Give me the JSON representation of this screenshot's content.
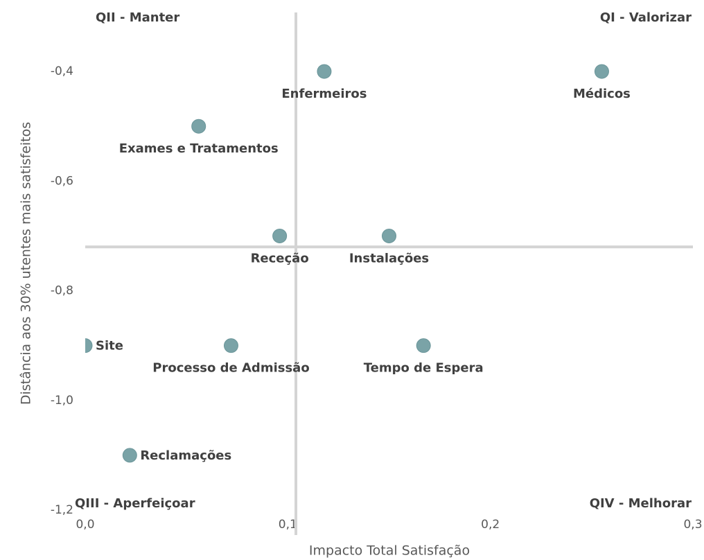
{
  "chart_data": {
    "type": "scatter",
    "x_label": "Impacto Total Satisfação",
    "y_label": "Distância aos 30% utentes mais satisfeitos",
    "xlim": [
      0,
      0.3
    ],
    "xticks": [
      {
        "value": 0,
        "label": "0,0"
      },
      {
        "value": 0.1,
        "label": "0,1"
      },
      {
        "value": 0.2,
        "label": "0,2"
      },
      {
        "value": 0.3,
        "label": "0,3"
      }
    ],
    "ylim": [
      -1.2,
      -0.3
    ],
    "yticks": [
      {
        "value": -1.2,
        "label": "-1,2"
      },
      {
        "value": -1.0,
        "label": "-1,0"
      },
      {
        "value": -0.8,
        "label": "-0,8"
      },
      {
        "value": -0.6,
        "label": "-0,6"
      },
      {
        "value": -0.4,
        "label": "-0,4"
      }
    ],
    "color": "#7aa3a7",
    "quadrant_lines": {
      "x": 0.104,
      "y": -0.72
    },
    "quadrants": [
      "QI - Valorizar",
      "QII - Manter",
      "QIII - Aperfeiçoar",
      "QIV - Melhorar"
    ],
    "labels": [
      "Enfermeiros",
      "Médicos",
      "Exames e Tratamentos",
      "Receção",
      "Instalações",
      "Site",
      "Processo de Admissão",
      "Tempo de Espera",
      "Reclamações"
    ],
    "x": [
      0.118,
      0.255,
      0.056,
      0.096,
      0.15,
      0,
      0.072,
      0.167,
      0.022
    ],
    "values": [
      -0.4,
      -0.4,
      -0.5,
      -0.7,
      -0.7,
      -0.9,
      -0.9,
      -0.9,
      -1.1
    ]
  }
}
